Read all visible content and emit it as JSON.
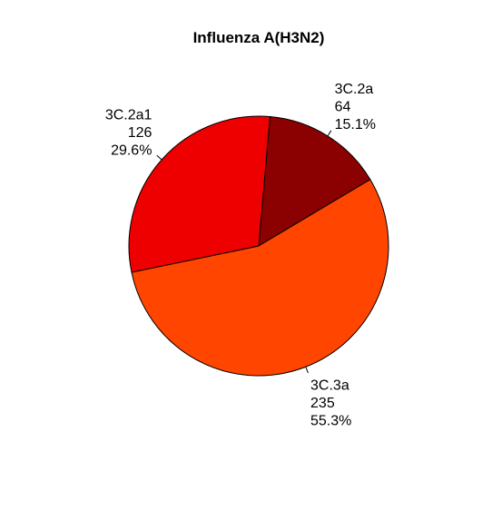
{
  "chart_data": {
    "type": "pie",
    "title": "Influenza A(H3N2)",
    "slices": [
      {
        "label": "3C.2a",
        "value": 64,
        "percent": "15.1%",
        "color": "#8B0000"
      },
      {
        "label": "3C.3a",
        "value": 235,
        "percent": "55.3%",
        "color": "#FF4500"
      },
      {
        "label": "3C.2a1",
        "value": 126,
        "percent": "29.6%",
        "color": "#EE0000"
      }
    ],
    "start_angle_deg": 85,
    "direction": "clockwise",
    "border_color": "#000000"
  }
}
